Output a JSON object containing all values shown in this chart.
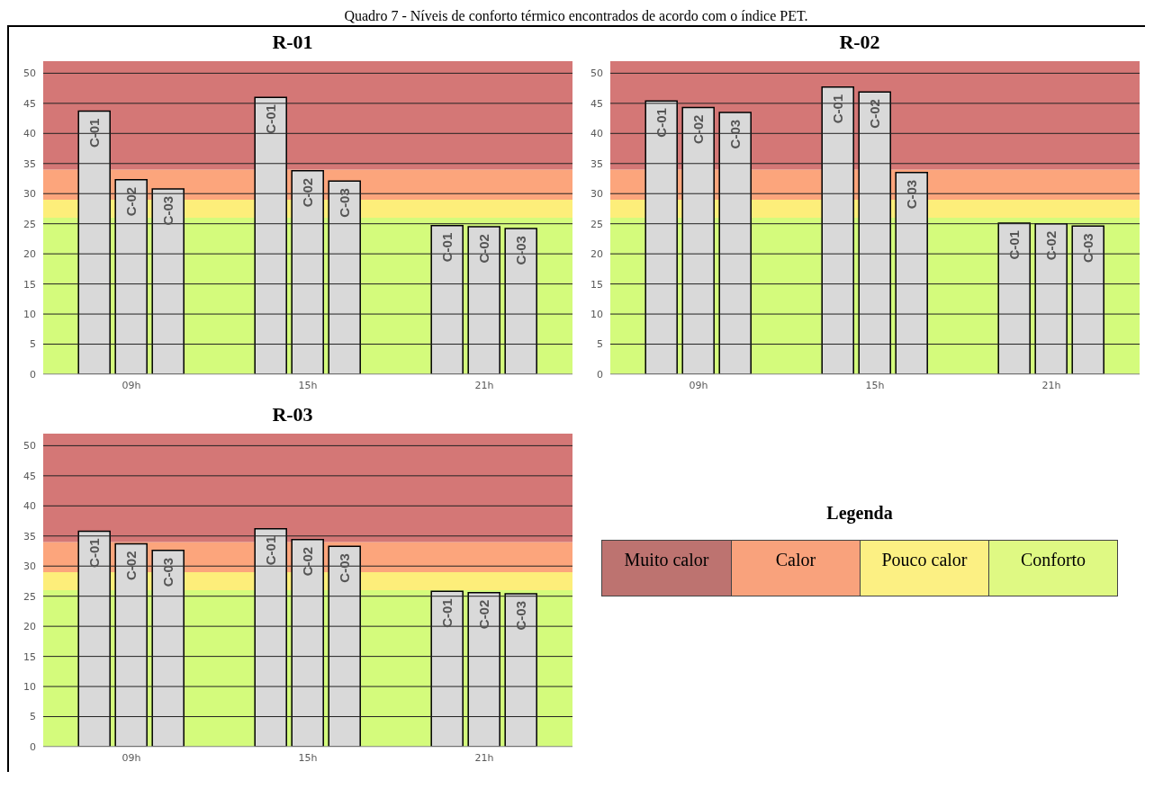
{
  "chart_data": [
    {
      "type": "bar",
      "title": "R-01",
      "annotations": [
        "Quadro 7 - Níveis de conforto térmico encontrados de acordo com o índice PET."
      ],
      "categories": [
        "09h",
        "15h",
        "21h"
      ],
      "series": [
        {
          "name": "C-01",
          "color": "#d9d9d9",
          "values": [
            43.7,
            46.0,
            24.7
          ]
        },
        {
          "name": "C-02",
          "color": "#d9d9d9",
          "values": [
            32.3,
            33.8,
            24.5
          ]
        },
        {
          "name": "C-03",
          "color": "#d9d9d9",
          "values": [
            30.8,
            32.1,
            24.2
          ]
        }
      ],
      "ylim": [
        0,
        52
      ],
      "yticks": [
        0,
        5,
        10,
        15,
        20,
        25,
        30,
        35,
        40,
        45,
        50
      ],
      "grid": "y",
      "bands": [
        {
          "axis": "y",
          "from": 0,
          "to": 26,
          "color": "#d4fb7c"
        },
        {
          "axis": "y",
          "from": 26,
          "to": 29,
          "color": "#fdee7a"
        },
        {
          "axis": "y",
          "from": 29,
          "to": 34,
          "color": "#fca57c"
        },
        {
          "axis": "y",
          "from": 34,
          "to": 52,
          "color": "#d47776"
        }
      ]
    },
    {
      "type": "bar",
      "title": "R-02",
      "categories": [
        "09h",
        "15h",
        "21h"
      ],
      "series": [
        {
          "name": "C-01",
          "color": "#d9d9d9",
          "values": [
            45.4,
            47.7,
            25.1
          ]
        },
        {
          "name": "C-02",
          "color": "#d9d9d9",
          "values": [
            44.3,
            46.9,
            25.0
          ]
        },
        {
          "name": "C-03",
          "color": "#d9d9d9",
          "values": [
            43.5,
            33.5,
            24.6
          ]
        }
      ],
      "ylim": [
        0,
        52
      ],
      "yticks": [
        0,
        5,
        10,
        15,
        20,
        25,
        30,
        35,
        40,
        45,
        50
      ],
      "grid": "y",
      "bands": [
        {
          "axis": "y",
          "from": 0,
          "to": 26,
          "color": "#d4fb7c"
        },
        {
          "axis": "y",
          "from": 26,
          "to": 29,
          "color": "#fdee7a"
        },
        {
          "axis": "y",
          "from": 29,
          "to": 34,
          "color": "#fca57c"
        },
        {
          "axis": "y",
          "from": 34,
          "to": 52,
          "color": "#d47776"
        }
      ]
    },
    {
      "type": "bar",
      "title": "R-03",
      "categories": [
        "09h",
        "15h",
        "21h"
      ],
      "series": [
        {
          "name": "C-01",
          "color": "#d9d9d9",
          "values": [
            35.8,
            36.2,
            25.8
          ]
        },
        {
          "name": "C-02",
          "color": "#d9d9d9",
          "values": [
            33.7,
            34.4,
            25.6
          ]
        },
        {
          "name": "C-03",
          "color": "#d9d9d9",
          "values": [
            32.6,
            33.3,
            25.4
          ]
        }
      ],
      "ylim": [
        0,
        52
      ],
      "yticks": [
        0,
        5,
        10,
        15,
        20,
        25,
        30,
        35,
        40,
        45,
        50
      ],
      "grid": "y",
      "bands": [
        {
          "axis": "y",
          "from": 0,
          "to": 26,
          "color": "#d4fb7c"
        },
        {
          "axis": "y",
          "from": 26,
          "to": 29,
          "color": "#fdee7a"
        },
        {
          "axis": "y",
          "from": 29,
          "to": 34,
          "color": "#fca57c"
        },
        {
          "axis": "y",
          "from": 34,
          "to": 52,
          "color": "#d47776"
        }
      ]
    },
    {
      "type": "other",
      "title": "Legenda",
      "categories": [
        "Muito calor",
        "Calor",
        "Pouco calor",
        "Conforto"
      ],
      "colors": [
        "#bd7370",
        "#f9a27c",
        "#fcf083",
        "#dff983"
      ]
    }
  ]
}
